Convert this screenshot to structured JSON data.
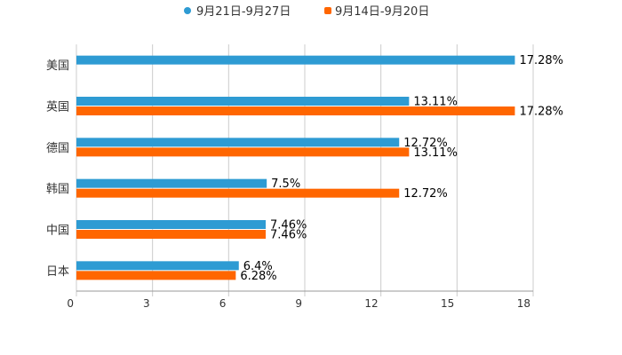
{
  "chart_data": {
    "type": "bar",
    "orientation": "horizontal",
    "title": "",
    "xlabel": "",
    "ylabel": "",
    "xlim": [
      0,
      18
    ],
    "x_ticks": [
      "0",
      "3",
      "6",
      "9",
      "12",
      "15",
      "18"
    ],
    "grid": true,
    "legend_position": "top-center",
    "categories": [
      "美国",
      "英国",
      "德国",
      "韩国",
      "中国",
      "日本"
    ],
    "series": [
      {
        "name": "9月21日-9月27日",
        "color": "#2e9bd3",
        "values": [
          17.28,
          13.11,
          12.72,
          7.5,
          7.46,
          6.4
        ],
        "labels": [
          "17.28%",
          "13.11%",
          "12.72%",
          "7.5%",
          "7.46%",
          "6.4%"
        ]
      },
      {
        "name": "9月14日-9月20日",
        "color": "#ff6600",
        "values": [
          null,
          17.28,
          13.11,
          12.72,
          7.46,
          6.28
        ],
        "labels": [
          "",
          "17.28%",
          "13.11%",
          "12.72%",
          "7.46%",
          "6.28%"
        ]
      }
    ]
  }
}
